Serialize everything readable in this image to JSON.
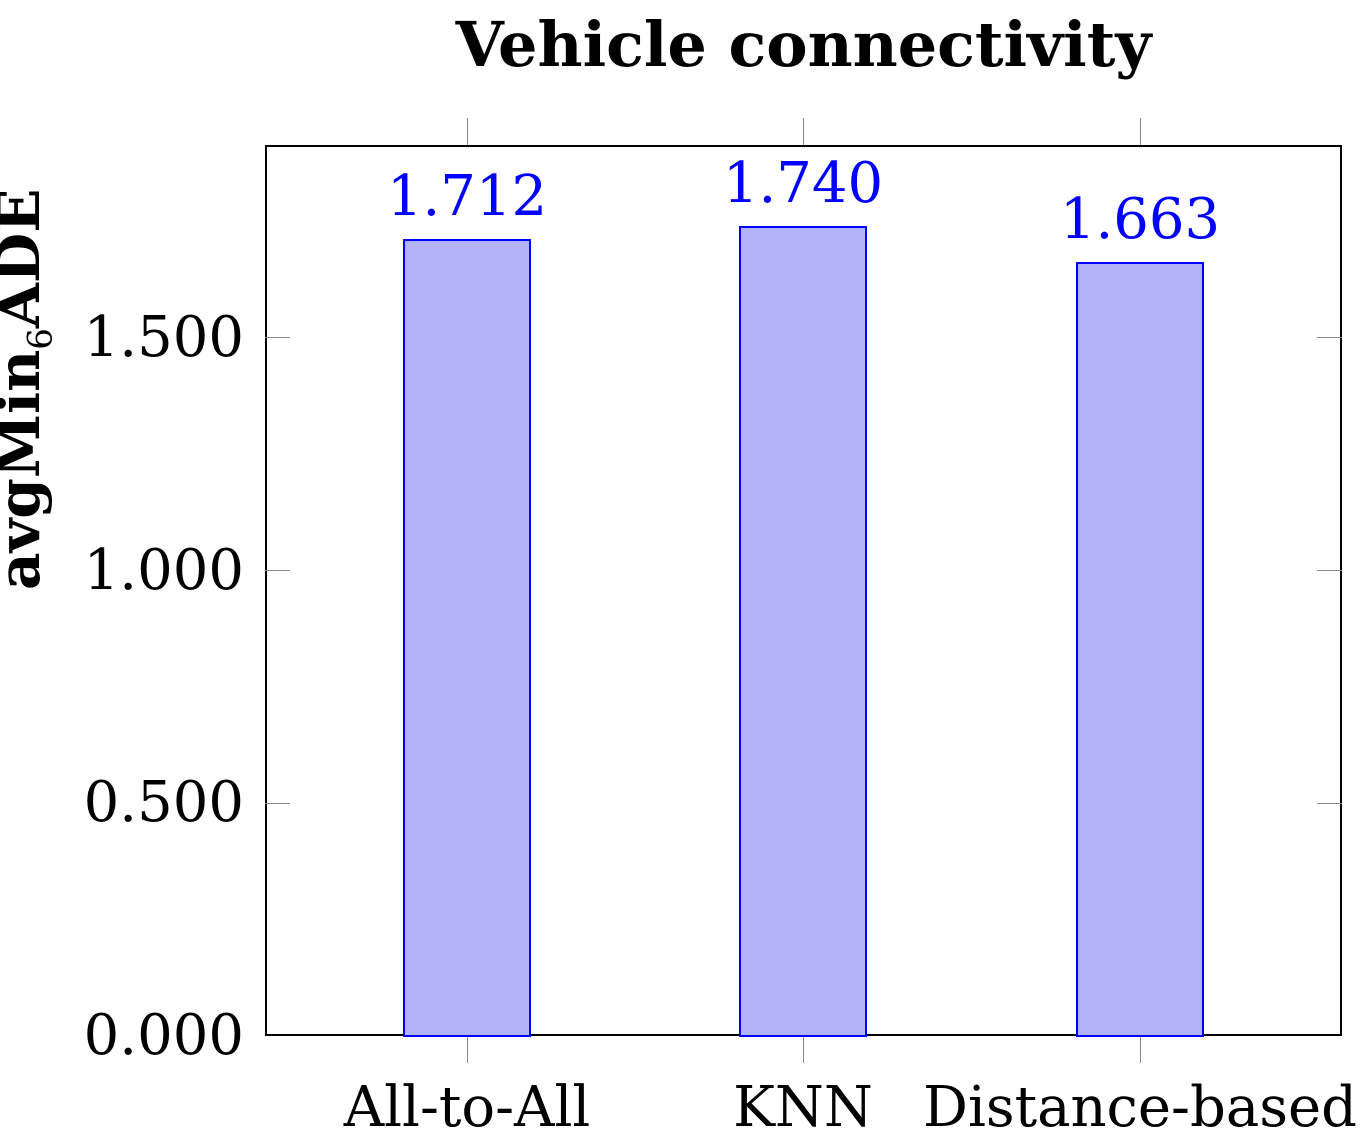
{
  "chart_data": {
    "type": "bar",
    "title": "Vehicle connectivity",
    "xlabel": "",
    "ylabel": "avgMin6ADE",
    "ylabel_main": "avgMin",
    "ylabel_sub": "6",
    "ylabel_tail": "ADE",
    "categories": [
      "All-to-All",
      "KNN",
      "Distance-based"
    ],
    "values": [
      1.712,
      1.74,
      1.663
    ],
    "value_labels": [
      "1.712",
      "1.740",
      "1.663"
    ],
    "ylim": [
      0,
      1.91
    ],
    "yticks": [
      0.0,
      0.5,
      1.0,
      1.5
    ],
    "ytick_labels": [
      "0.000",
      "0.500",
      "1.000",
      "1.500"
    ],
    "grid": false,
    "legend": null,
    "bar_fill": "#b2b2f7",
    "bar_edge": "#0000ff",
    "label_color": "#0000ff"
  }
}
